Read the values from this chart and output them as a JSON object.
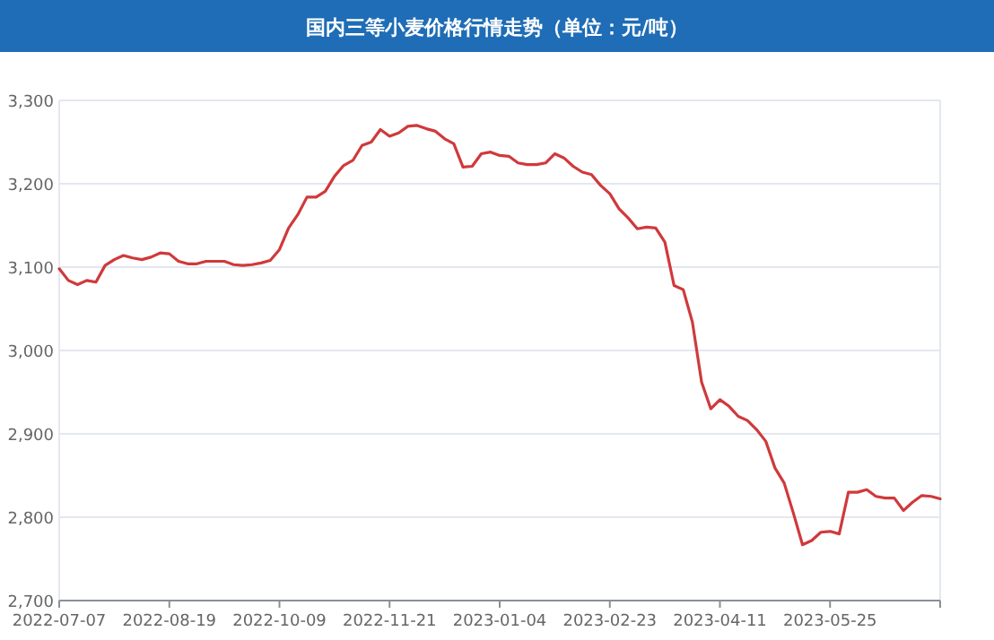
{
  "chart_data": {
    "type": "line",
    "title": "国内三等小麦价格行情走势（单位：元/吨）",
    "categories": [
      "2022-07-07",
      null,
      null,
      null,
      null,
      null,
      null,
      null,
      null,
      null,
      null,
      null,
      "2022-08-19",
      null,
      null,
      null,
      null,
      null,
      null,
      null,
      null,
      null,
      null,
      null,
      "2022-10-09",
      null,
      null,
      null,
      null,
      null,
      null,
      null,
      null,
      null,
      null,
      null,
      "2022-11-21",
      null,
      null,
      null,
      null,
      null,
      null,
      null,
      null,
      null,
      null,
      null,
      "2023-01-04",
      null,
      null,
      null,
      null,
      null,
      null,
      null,
      null,
      null,
      null,
      null,
      "2023-02-23",
      null,
      null,
      null,
      null,
      null,
      null,
      null,
      null,
      null,
      null,
      null,
      "2023-04-11",
      null,
      null,
      null,
      null,
      null,
      null,
      null,
      null,
      null,
      null,
      null,
      "2023-05-25",
      null,
      null,
      null,
      null,
      null,
      null,
      null,
      null,
      null,
      null,
      null,
      null
    ],
    "series": [
      {
        "color": "#d0393b",
        "values": [
          3098,
          3084,
          3079,
          3084,
          3082,
          3102,
          3109,
          3114,
          3111,
          3109,
          3112,
          3117,
          3116,
          3107,
          3104,
          3104,
          3107,
          3107,
          3107,
          3103,
          3102,
          3103,
          3105,
          3108,
          3121,
          3147,
          3163,
          3184,
          3184,
          3191,
          3209,
          3222,
          3228,
          3246,
          3250,
          3265,
          3257,
          3261,
          3269,
          3270,
          3266,
          3263,
          3254,
          3248,
          3220,
          3221,
          3236,
          3238,
          3234,
          3233,
          3225,
          3223,
          3223,
          3225,
          3236,
          3231,
          3221,
          3214,
          3211,
          3198,
          3188,
          3170,
          3159,
          3146,
          3148,
          3147,
          3130,
          3078,
          3073,
          3034,
          2962,
          2930,
          2941,
          2933,
          2921,
          2916,
          2905,
          2891,
          2859,
          2841,
          2805,
          2767,
          2772,
          2782,
          2783,
          2780,
          2830,
          2830,
          2833,
          2825,
          2823,
          2823,
          2808,
          2818,
          2826,
          2825,
          2822
        ]
      }
    ],
    "ylim": [
      2700,
      3300
    ],
    "yticks": [
      {
        "value": 2700,
        "label": "2,700"
      },
      {
        "value": 2800,
        "label": "2,800"
      },
      {
        "value": 2900,
        "label": "2,900"
      },
      {
        "value": 3000,
        "label": "3,000"
      },
      {
        "value": 3100,
        "label": "3,100"
      },
      {
        "value": 3200,
        "label": "3,200"
      },
      {
        "value": 3300,
        "label": "3,300"
      }
    ],
    "grid": "y",
    "marker": "none",
    "line_style": "solid"
  }
}
